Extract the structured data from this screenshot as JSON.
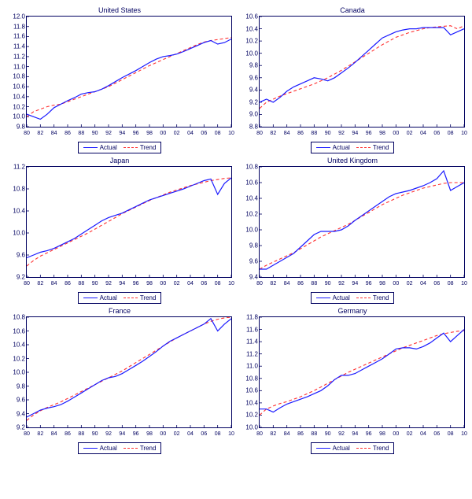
{
  "colors": {
    "actual": "#1a1aff",
    "trend": "#ff3030",
    "frame": "#000060",
    "text": "#000060"
  },
  "legend": {
    "actual_label": "Actual",
    "trend_label": "Trend",
    "actual_style": "solid",
    "trend_style": "dashed"
  },
  "x": {
    "min": 80,
    "max": 110,
    "ticks": [
      80,
      82,
      84,
      86,
      88,
      90,
      92,
      94,
      96,
      98,
      100,
      102,
      104,
      106,
      108,
      110
    ],
    "tick_labels": [
      "80",
      "82",
      "84",
      "86",
      "88",
      "90",
      "92",
      "94",
      "96",
      "98",
      "00",
      "02",
      "04",
      "06",
      "08",
      "10"
    ]
  },
  "panels": [
    {
      "id": "us",
      "title": "United States",
      "ymin": 9.8,
      "ymax": 12.0,
      "ystep": 0.2,
      "actual": [
        10.05,
        10.0,
        9.95,
        10.05,
        10.18,
        10.25,
        10.32,
        10.38,
        10.45,
        10.48,
        10.5,
        10.55,
        10.62,
        10.7,
        10.78,
        10.85,
        10.92,
        11.0,
        11.08,
        11.15,
        11.2,
        11.22,
        11.25,
        11.3,
        11.36,
        11.42,
        11.48,
        11.52,
        11.45,
        11.48,
        11.55
      ],
      "trend": [
        10.0,
        10.1,
        10.15,
        10.2,
        10.23,
        10.25,
        10.3,
        10.35,
        10.4,
        10.45,
        10.5,
        10.55,
        10.6,
        10.67,
        10.74,
        10.81,
        10.88,
        10.95,
        11.02,
        11.08,
        11.14,
        11.2,
        11.26,
        11.32,
        11.38,
        11.44,
        11.49,
        11.52,
        11.54,
        11.56,
        11.58
      ]
    },
    {
      "id": "ca",
      "title": "Canada",
      "ymin": 8.8,
      "ymax": 10.6,
      "ystep": 0.2,
      "actual": [
        9.2,
        9.25,
        9.2,
        9.28,
        9.38,
        9.45,
        9.5,
        9.55,
        9.6,
        9.58,
        9.55,
        9.6,
        9.68,
        9.76,
        9.85,
        9.95,
        10.05,
        10.15,
        10.25,
        10.3,
        10.35,
        10.38,
        10.4,
        10.4,
        10.42,
        10.42,
        10.42,
        10.42,
        10.3,
        10.35,
        10.4
      ],
      "trend": [
        9.1,
        9.2,
        9.25,
        9.3,
        9.34,
        9.38,
        9.42,
        9.46,
        9.5,
        9.55,
        9.6,
        9.66,
        9.72,
        9.79,
        9.86,
        9.93,
        10.0,
        10.07,
        10.14,
        10.2,
        10.26,
        10.3,
        10.34,
        10.37,
        10.4,
        10.42,
        10.43,
        10.44,
        10.45,
        10.4,
        10.45
      ]
    },
    {
      "id": "jp",
      "title": "Japan",
      "ymin": 9.2,
      "ymax": 11.2,
      "ystep": 0.4,
      "actual": [
        9.55,
        9.6,
        9.65,
        9.68,
        9.72,
        9.78,
        9.84,
        9.9,
        9.98,
        10.06,
        10.14,
        10.22,
        10.28,
        10.32,
        10.36,
        10.42,
        10.48,
        10.54,
        10.6,
        10.64,
        10.68,
        10.72,
        10.76,
        10.8,
        10.85,
        10.9,
        10.95,
        10.98,
        10.7,
        10.9,
        11.0
      ],
      "trend": [
        9.4,
        9.5,
        9.58,
        9.64,
        9.7,
        9.76,
        9.82,
        9.88,
        9.94,
        10.0,
        10.07,
        10.14,
        10.21,
        10.28,
        10.35,
        10.41,
        10.47,
        10.53,
        10.59,
        10.64,
        10.69,
        10.74,
        10.78,
        10.82,
        10.86,
        10.89,
        10.92,
        10.95,
        10.97,
        10.99,
        11.0
      ]
    },
    {
      "id": "uk",
      "title": "United Kingdom",
      "ymin": 9.4,
      "ymax": 10.8,
      "ystep": 0.2,
      "actual": [
        9.5,
        9.5,
        9.55,
        9.6,
        9.65,
        9.7,
        9.78,
        9.86,
        9.94,
        9.98,
        9.98,
        9.98,
        10.0,
        10.05,
        10.12,
        10.18,
        10.24,
        10.3,
        10.36,
        10.42,
        10.46,
        10.48,
        10.5,
        10.53,
        10.56,
        10.6,
        10.65,
        10.75,
        10.5,
        10.55,
        10.6
      ],
      "trend": [
        9.5,
        9.55,
        9.59,
        9.63,
        9.67,
        9.71,
        9.76,
        9.81,
        9.86,
        9.91,
        9.95,
        9.99,
        10.03,
        10.07,
        10.12,
        10.17,
        10.22,
        10.27,
        10.32,
        10.36,
        10.4,
        10.44,
        10.47,
        10.5,
        10.53,
        10.55,
        10.57,
        10.59,
        10.6,
        10.6,
        10.6
      ]
    },
    {
      "id": "fr",
      "title": "France",
      "ymin": 9.2,
      "ymax": 10.8,
      "ystep": 0.2,
      "actual": [
        9.35,
        9.4,
        9.45,
        9.48,
        9.5,
        9.53,
        9.58,
        9.64,
        9.7,
        9.76,
        9.82,
        9.88,
        9.92,
        9.94,
        9.98,
        10.04,
        10.1,
        10.16,
        10.23,
        10.3,
        10.38,
        10.45,
        10.5,
        10.55,
        10.6,
        10.65,
        10.7,
        10.78,
        10.6,
        10.7,
        10.78
      ],
      "trend": [
        9.3,
        9.38,
        9.44,
        9.49,
        9.53,
        9.57,
        9.62,
        9.67,
        9.72,
        9.77,
        9.82,
        9.87,
        9.92,
        9.97,
        10.02,
        10.08,
        10.14,
        10.2,
        10.26,
        10.32,
        10.38,
        10.44,
        10.5,
        10.55,
        10.6,
        10.65,
        10.7,
        10.74,
        10.77,
        10.79,
        10.8
      ]
    },
    {
      "id": "de",
      "title": "Germany",
      "ymin": 10.0,
      "ymax": 11.8,
      "ystep": 0.2,
      "actual": [
        10.3,
        10.3,
        10.25,
        10.32,
        10.38,
        10.42,
        10.46,
        10.5,
        10.55,
        10.6,
        10.68,
        10.78,
        10.85,
        10.85,
        10.88,
        10.94,
        11.0,
        11.06,
        11.12,
        11.2,
        11.28,
        11.3,
        11.3,
        11.28,
        11.32,
        11.38,
        11.46,
        11.54,
        11.4,
        11.5,
        11.6
      ],
      "trend": [
        10.2,
        10.3,
        10.35,
        10.39,
        10.42,
        10.46,
        10.5,
        10.55,
        10.6,
        10.66,
        10.72,
        10.78,
        10.84,
        10.9,
        10.95,
        11.0,
        11.05,
        11.1,
        11.15,
        11.2,
        11.25,
        11.3,
        11.34,
        11.38,
        11.42,
        11.46,
        11.5,
        11.53,
        11.55,
        11.57,
        11.58
      ]
    }
  ]
}
